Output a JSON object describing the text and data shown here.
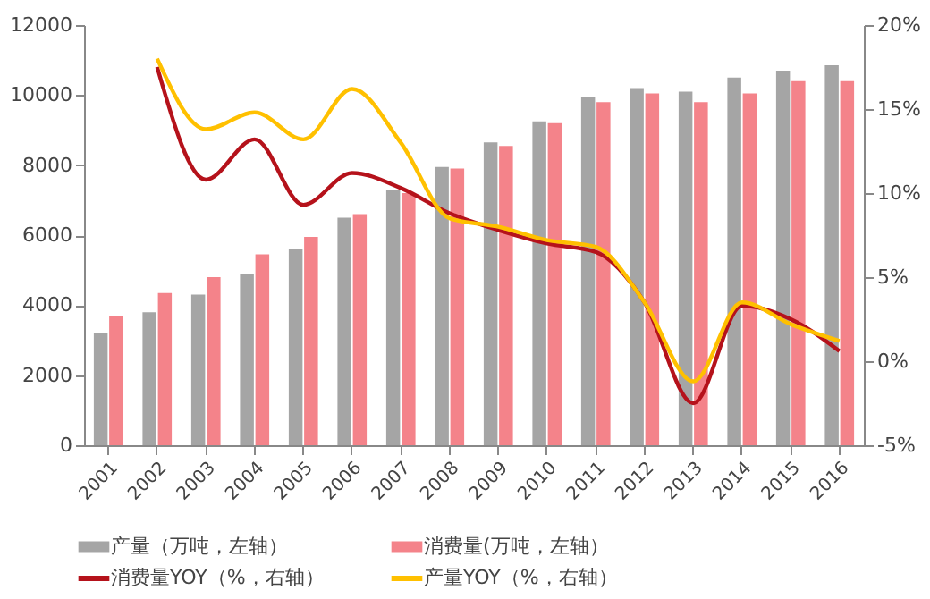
{
  "chart_data": {
    "type": "bar",
    "categories": [
      "2001",
      "2002",
      "2003",
      "2004",
      "2005",
      "2006",
      "2007",
      "2008",
      "2009",
      "2010",
      "2011",
      "2012",
      "2013",
      "2014",
      "2015",
      "2016"
    ],
    "series": [
      {
        "name": "产量（万吨，左轴）",
        "color": "#a5a5a5",
        "values": [
          3200,
          3800,
          4300,
          4900,
          5600,
          6500,
          7300,
          7950,
          8650,
          9250,
          9950,
          10200,
          10100,
          10500,
          10700,
          10850
        ]
      },
      {
        "name": "消费量(万吨，左轴）",
        "color": "#f4838a",
        "values": [
          3700,
          4350,
          4800,
          5450,
          5950,
          6600,
          7200,
          7900,
          8550,
          9200,
          9800,
          10050,
          9800,
          10050,
          10400,
          10400
        ]
      },
      {
        "name": "消费量YOY（%，右轴）",
        "type": "line",
        "axis": "y2",
        "color": "#b5121b",
        "values": [
          null,
          17.5,
          10.8,
          13.2,
          9.3,
          11.2,
          10.3,
          8.8,
          7.8,
          7.0,
          6.5,
          3.5,
          -2.5,
          3.3,
          2.5,
          0.6
        ]
      },
      {
        "name": "产量YOY（%，右轴）",
        "type": "line",
        "axis": "y2",
        "color": "#ffc000",
        "values": [
          null,
          18.0,
          13.8,
          14.8,
          13.2,
          16.2,
          13.0,
          8.5,
          8.0,
          7.2,
          6.8,
          3.5,
          -1.2,
          3.5,
          2.2,
          1.2
        ]
      }
    ],
    "ylim": [
      0,
      12000
    ],
    "yticks": [
      0,
      2000,
      4000,
      6000,
      8000,
      10000,
      12000
    ],
    "y2lim": [
      -5,
      20
    ],
    "y2ticks": [
      {
        "value": -5,
        "label": "-5%"
      },
      {
        "value": 0,
        "label": "0%"
      },
      {
        "value": 5,
        "label": "5%"
      },
      {
        "value": 10,
        "label": "10%"
      },
      {
        "value": 15,
        "label": "15%"
      },
      {
        "value": 20,
        "label": "20%"
      }
    ],
    "grid": false,
    "legend": "bottom",
    "marker": "none",
    "line_style": "solid"
  }
}
